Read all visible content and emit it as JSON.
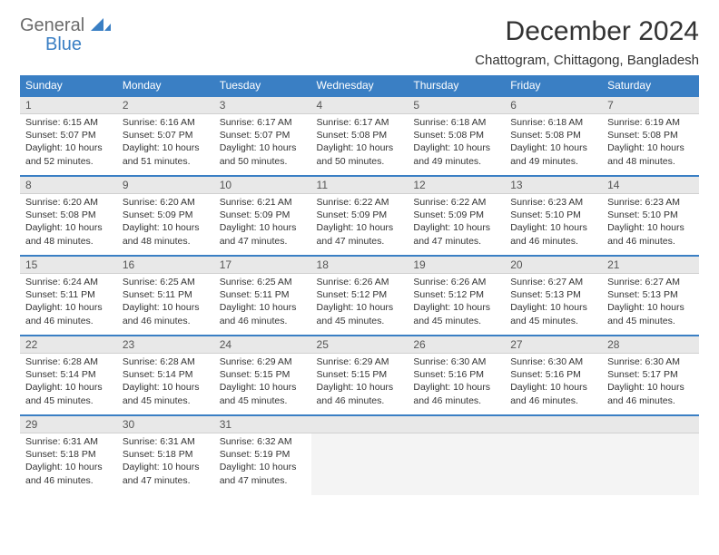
{
  "branding": {
    "line1": "General",
    "line2": "Blue",
    "logo_color": "#3a7fc4",
    "text_color_muted": "#6b6b6b"
  },
  "header": {
    "title": "December 2024",
    "location": "Chattogram, Chittagong, Bangladesh"
  },
  "colors": {
    "header_bg": "#3a7fc4",
    "header_text": "#ffffff",
    "daynum_bg": "#e8e8e8",
    "row_border": "#3a7fc4",
    "body_text": "#333333"
  },
  "typography": {
    "title_fontsize": 30,
    "subtitle_fontsize": 15,
    "weekday_fontsize": 12,
    "daynum_fontsize": 12,
    "cell_fontsize": 10.5
  },
  "calendar": {
    "columns": [
      "Sunday",
      "Monday",
      "Tuesday",
      "Wednesday",
      "Thursday",
      "Friday",
      "Saturday"
    ],
    "weeks": [
      [
        {
          "n": "1",
          "sunrise": "6:15 AM",
          "sunset": "5:07 PM",
          "daylight": "10 hours and 52 minutes."
        },
        {
          "n": "2",
          "sunrise": "6:16 AM",
          "sunset": "5:07 PM",
          "daylight": "10 hours and 51 minutes."
        },
        {
          "n": "3",
          "sunrise": "6:17 AM",
          "sunset": "5:07 PM",
          "daylight": "10 hours and 50 minutes."
        },
        {
          "n": "4",
          "sunrise": "6:17 AM",
          "sunset": "5:08 PM",
          "daylight": "10 hours and 50 minutes."
        },
        {
          "n": "5",
          "sunrise": "6:18 AM",
          "sunset": "5:08 PM",
          "daylight": "10 hours and 49 minutes."
        },
        {
          "n": "6",
          "sunrise": "6:18 AM",
          "sunset": "5:08 PM",
          "daylight": "10 hours and 49 minutes."
        },
        {
          "n": "7",
          "sunrise": "6:19 AM",
          "sunset": "5:08 PM",
          "daylight": "10 hours and 48 minutes."
        }
      ],
      [
        {
          "n": "8",
          "sunrise": "6:20 AM",
          "sunset": "5:08 PM",
          "daylight": "10 hours and 48 minutes."
        },
        {
          "n": "9",
          "sunrise": "6:20 AM",
          "sunset": "5:09 PM",
          "daylight": "10 hours and 48 minutes."
        },
        {
          "n": "10",
          "sunrise": "6:21 AM",
          "sunset": "5:09 PM",
          "daylight": "10 hours and 47 minutes."
        },
        {
          "n": "11",
          "sunrise": "6:22 AM",
          "sunset": "5:09 PM",
          "daylight": "10 hours and 47 minutes."
        },
        {
          "n": "12",
          "sunrise": "6:22 AM",
          "sunset": "5:09 PM",
          "daylight": "10 hours and 47 minutes."
        },
        {
          "n": "13",
          "sunrise": "6:23 AM",
          "sunset": "5:10 PM",
          "daylight": "10 hours and 46 minutes."
        },
        {
          "n": "14",
          "sunrise": "6:23 AM",
          "sunset": "5:10 PM",
          "daylight": "10 hours and 46 minutes."
        }
      ],
      [
        {
          "n": "15",
          "sunrise": "6:24 AM",
          "sunset": "5:11 PM",
          "daylight": "10 hours and 46 minutes."
        },
        {
          "n": "16",
          "sunrise": "6:25 AM",
          "sunset": "5:11 PM",
          "daylight": "10 hours and 46 minutes."
        },
        {
          "n": "17",
          "sunrise": "6:25 AM",
          "sunset": "5:11 PM",
          "daylight": "10 hours and 46 minutes."
        },
        {
          "n": "18",
          "sunrise": "6:26 AM",
          "sunset": "5:12 PM",
          "daylight": "10 hours and 45 minutes."
        },
        {
          "n": "19",
          "sunrise": "6:26 AM",
          "sunset": "5:12 PM",
          "daylight": "10 hours and 45 minutes."
        },
        {
          "n": "20",
          "sunrise": "6:27 AM",
          "sunset": "5:13 PM",
          "daylight": "10 hours and 45 minutes."
        },
        {
          "n": "21",
          "sunrise": "6:27 AM",
          "sunset": "5:13 PM",
          "daylight": "10 hours and 45 minutes."
        }
      ],
      [
        {
          "n": "22",
          "sunrise": "6:28 AM",
          "sunset": "5:14 PM",
          "daylight": "10 hours and 45 minutes."
        },
        {
          "n": "23",
          "sunrise": "6:28 AM",
          "sunset": "5:14 PM",
          "daylight": "10 hours and 45 minutes."
        },
        {
          "n": "24",
          "sunrise": "6:29 AM",
          "sunset": "5:15 PM",
          "daylight": "10 hours and 45 minutes."
        },
        {
          "n": "25",
          "sunrise": "6:29 AM",
          "sunset": "5:15 PM",
          "daylight": "10 hours and 46 minutes."
        },
        {
          "n": "26",
          "sunrise": "6:30 AM",
          "sunset": "5:16 PM",
          "daylight": "10 hours and 46 minutes."
        },
        {
          "n": "27",
          "sunrise": "6:30 AM",
          "sunset": "5:16 PM",
          "daylight": "10 hours and 46 minutes."
        },
        {
          "n": "28",
          "sunrise": "6:30 AM",
          "sunset": "5:17 PM",
          "daylight": "10 hours and 46 minutes."
        }
      ],
      [
        {
          "n": "29",
          "sunrise": "6:31 AM",
          "sunset": "5:18 PM",
          "daylight": "10 hours and 46 minutes."
        },
        {
          "n": "30",
          "sunrise": "6:31 AM",
          "sunset": "5:18 PM",
          "daylight": "10 hours and 47 minutes."
        },
        {
          "n": "31",
          "sunrise": "6:32 AM",
          "sunset": "5:19 PM",
          "daylight": "10 hours and 47 minutes."
        },
        {
          "empty": true
        },
        {
          "empty": true
        },
        {
          "empty": true
        },
        {
          "empty": true
        }
      ]
    ],
    "labels": {
      "sunrise": "Sunrise:",
      "sunset": "Sunset:",
      "daylight": "Daylight:"
    }
  }
}
